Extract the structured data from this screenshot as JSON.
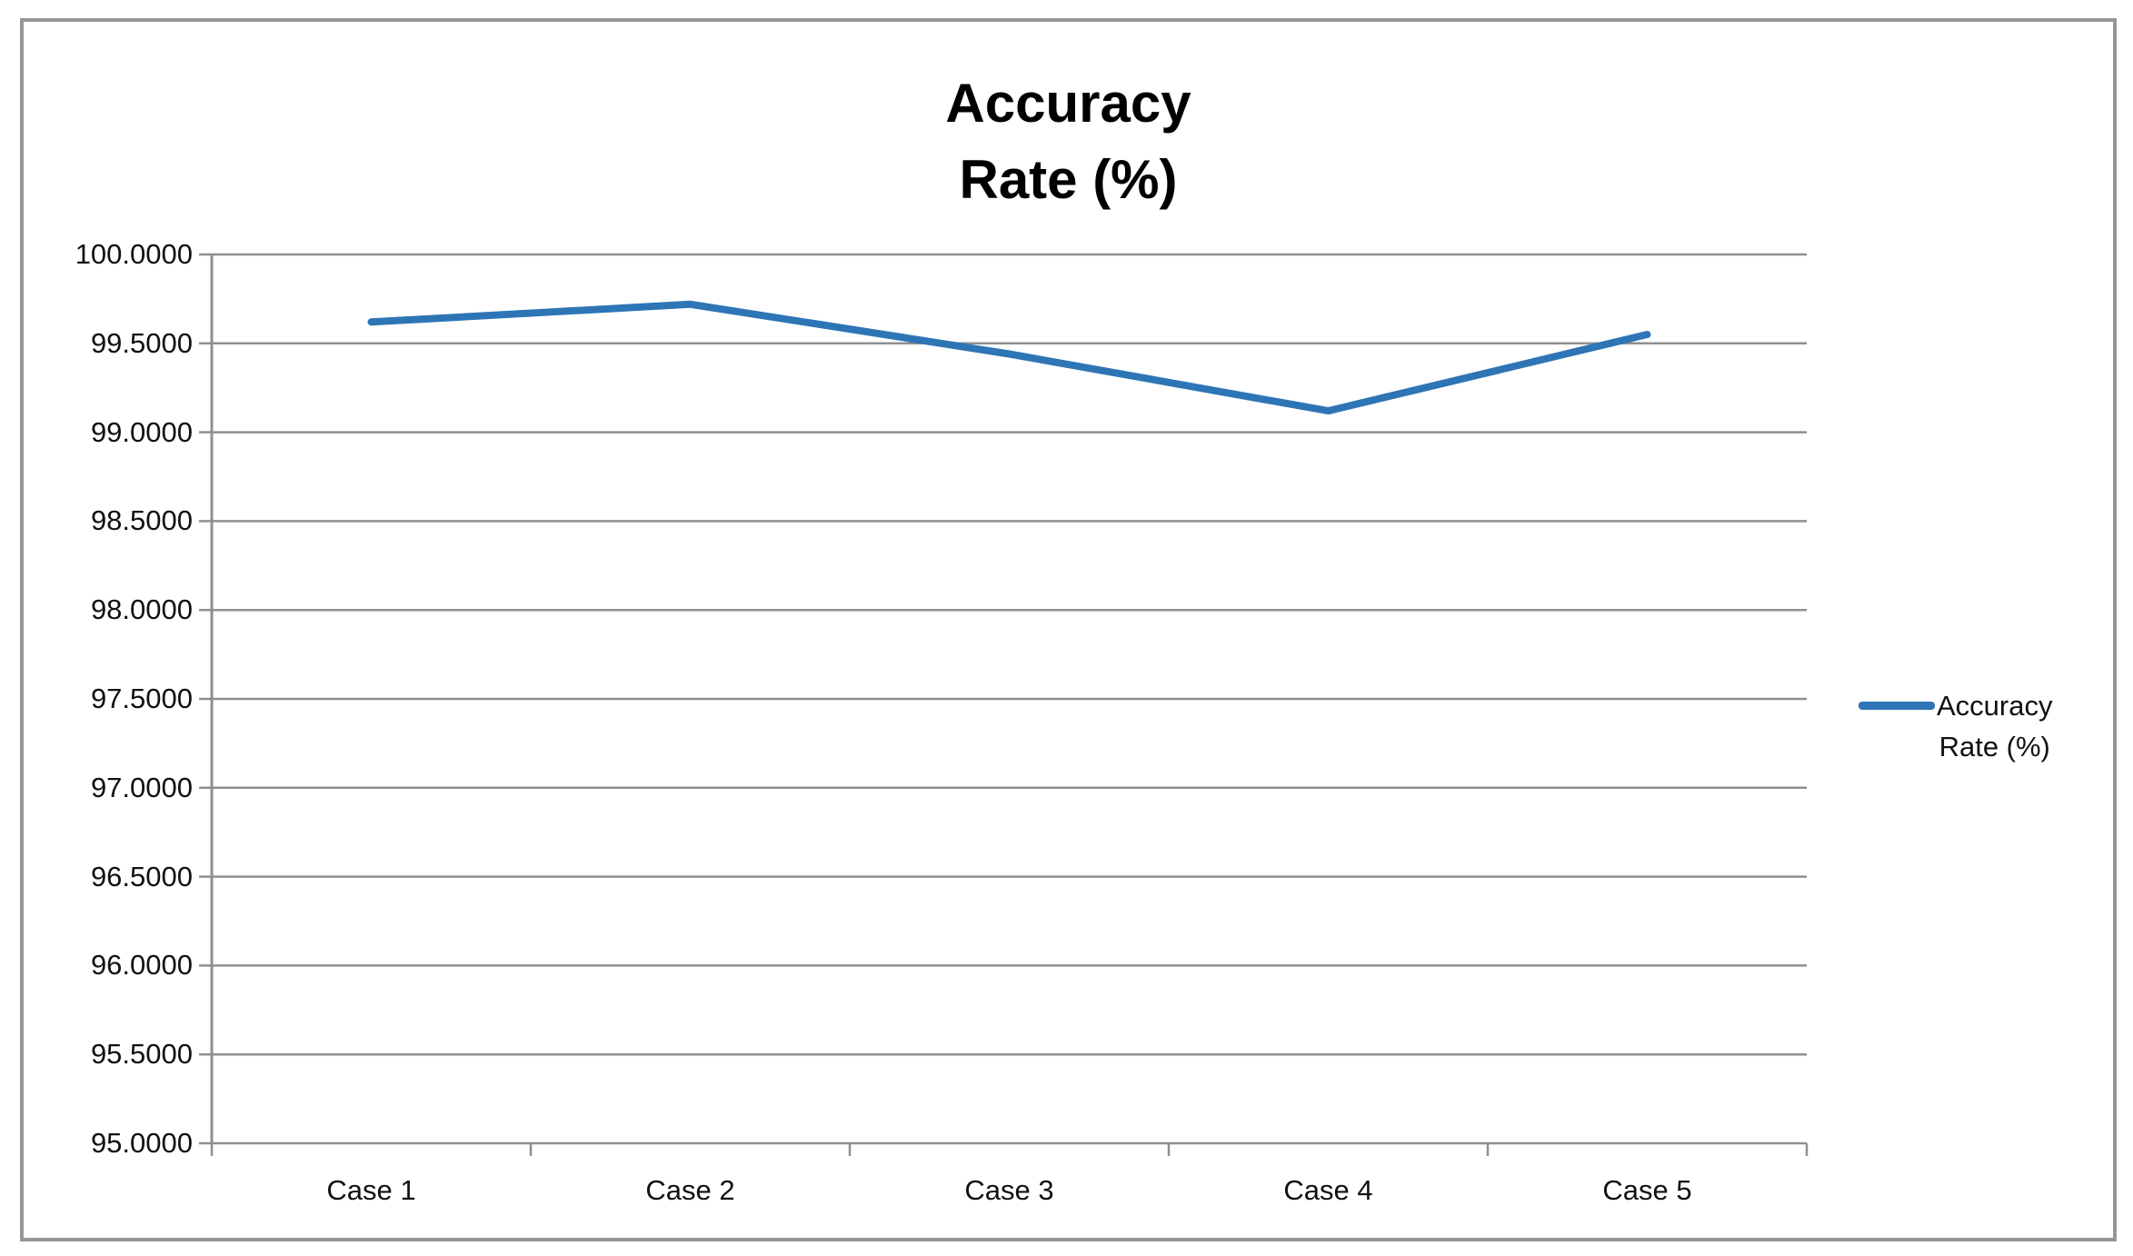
{
  "chart": {
    "title_line1": "Accuracy",
    "title_line2": "Rate (%)"
  },
  "legend": {
    "line1": "Accuracy",
    "line2": "Rate (%)"
  },
  "chart_data": {
    "type": "line",
    "title": "Accuracy Rate (%)",
    "categories": [
      "Case 1",
      "Case 2",
      "Case 3",
      "Case 4",
      "Case 5"
    ],
    "series": [
      {
        "name": "Accuracy Rate (%)",
        "values": [
          99.62,
          99.72,
          99.44,
          99.12,
          99.55
        ]
      }
    ],
    "xlabel": "",
    "ylabel": "",
    "ylim": [
      95.0,
      100.0
    ],
    "ytick_step": 0.5,
    "ytick_labels": [
      "100.0000",
      "99.5000",
      "99.0000",
      "98.5000",
      "98.0000",
      "97.5000",
      "97.0000",
      "96.5000",
      "96.0000",
      "95.5000",
      "95.0000"
    ],
    "grid": true,
    "legend_position": "right",
    "colors": {
      "line": "#2E75B6",
      "gridline": "#8F8F8F",
      "axis": "#8F8F8F",
      "frame_border": "#969696",
      "text": "#111111",
      "title_text": "#000000",
      "background": "#FFFFFF"
    }
  }
}
